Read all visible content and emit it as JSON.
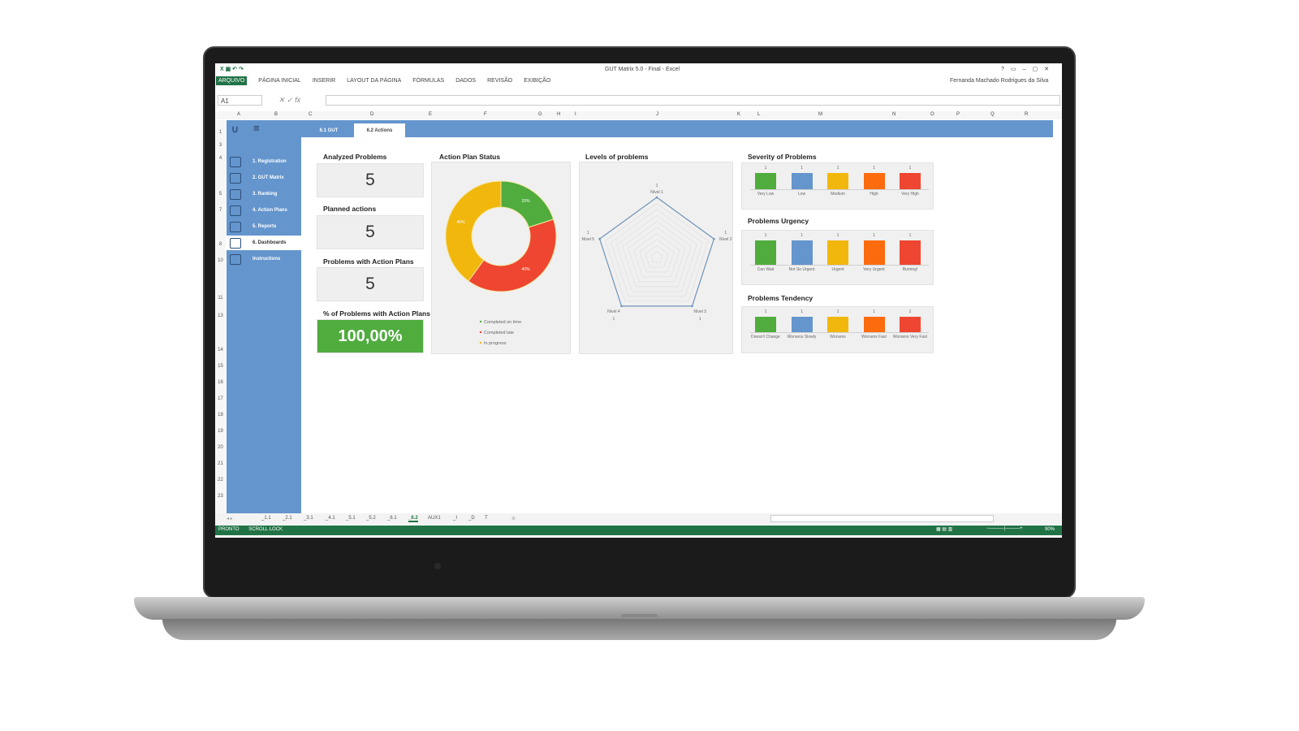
{
  "window": {
    "title": "GUT Matrix 5.0 - Final - Excel",
    "user": "Fernanda Machado Rodrigues da Silva",
    "controls": [
      "?",
      "▭",
      "–",
      "▢",
      "✕"
    ]
  },
  "ribbon": {
    "tabs": [
      "ARQUIVO",
      "PÁGINA INICIAL",
      "INSERIR",
      "LAYOUT DA PÁGINA",
      "FÓRMULAS",
      "DADOS",
      "REVISÃO",
      "EXIBIÇÃO"
    ]
  },
  "formula_bar": {
    "name_box": "A1",
    "fx": "fx",
    "value": ""
  },
  "columns": [
    "A",
    "B",
    "C",
    "D",
    "E",
    "F",
    "G",
    "H",
    "I",
    "J",
    "K",
    "L",
    "M",
    "N",
    "O",
    "P",
    "Q",
    "R"
  ],
  "rows": [
    "1",
    "3",
    "4",
    "5",
    "7",
    "8",
    "10",
    "11",
    "13",
    "14",
    "15",
    "16",
    "17",
    "18",
    "19",
    "20",
    "21",
    "22",
    "23"
  ],
  "dashboard_tabs": [
    "6.1 GUT",
    "6.2 Actions"
  ],
  "active_dashboard_tab": 1,
  "sidebar": {
    "items": [
      "1. Registration",
      "2. GUT Matrix",
      "3. Ranking",
      "4. Action Plans",
      "5. Reports",
      "6. Dashboards",
      "Instructions"
    ],
    "active": 5,
    "icons": [
      "registration-icon",
      "alarm-icon",
      "ranking-icon",
      "list-icon",
      "report-icon",
      "dashboard-icon",
      "instructions-icon"
    ]
  },
  "kpis": [
    {
      "label": "Analyzed Problems",
      "value": "5"
    },
    {
      "label": "Planned actions",
      "value": "5"
    },
    {
      "label": "Problems with Action Plans",
      "value": "5"
    },
    {
      "label": "% of Problems with Action Plans",
      "value": "100,00%"
    }
  ],
  "chart_data": [
    {
      "type": "pie",
      "title": "Action Plan Status",
      "donut": true,
      "categories": [
        "Completed on time",
        "Completed late",
        "In progress"
      ],
      "values": [
        20,
        40,
        40
      ],
      "labels": [
        "20%",
        "40%",
        "40%"
      ],
      "colors": [
        "#4fac3d",
        "#ee4630",
        "#f1b70c"
      ]
    },
    {
      "type": "radar",
      "title": "Levels of problems",
      "categories": [
        "Nível 1",
        "Nível 2",
        "Nível 3",
        "Nível 4",
        "Nível 5"
      ],
      "values": [
        1,
        1,
        1,
        1,
        1
      ],
      "color": "#6f92b8"
    },
    {
      "type": "bar",
      "title": "Severity of Problems",
      "categories": [
        "Very Low",
        "Low",
        "Medium",
        "High",
        "Very High"
      ],
      "values": [
        1,
        1,
        1,
        1,
        1
      ]
    },
    {
      "type": "bar",
      "title": "Problems Urgency",
      "categories": [
        "Can Wait",
        "Not So Urgent",
        "Urgent",
        "Very Urgent",
        "Burning!"
      ],
      "values": [
        1,
        1,
        1,
        1,
        1
      ]
    },
    {
      "type": "bar",
      "title": "Problems Tendency",
      "categories": [
        "Doesn't Change",
        "Worsens Slowly",
        "Worsens",
        "Worsens Fast",
        "Worsens Very Fast"
      ],
      "values": [
        1,
        1,
        1,
        1,
        1
      ]
    }
  ],
  "bar_colors": [
    "#4fac3d",
    "#6495cd",
    "#f1b70c",
    "#fd6b0f",
    "#ee4630"
  ],
  "sheet_tabs": [
    "_1.1",
    "_2.1",
    "_3.1",
    "_4.1",
    "_5.1",
    "_5.2",
    "_6.1",
    "_6.2",
    "AUX1",
    "_I",
    "_D",
    "T"
  ],
  "active_sheet": 7,
  "status": {
    "ready": "PRONTO",
    "scroll_lock": "SCROLL LOCK",
    "zoom": "90%"
  }
}
